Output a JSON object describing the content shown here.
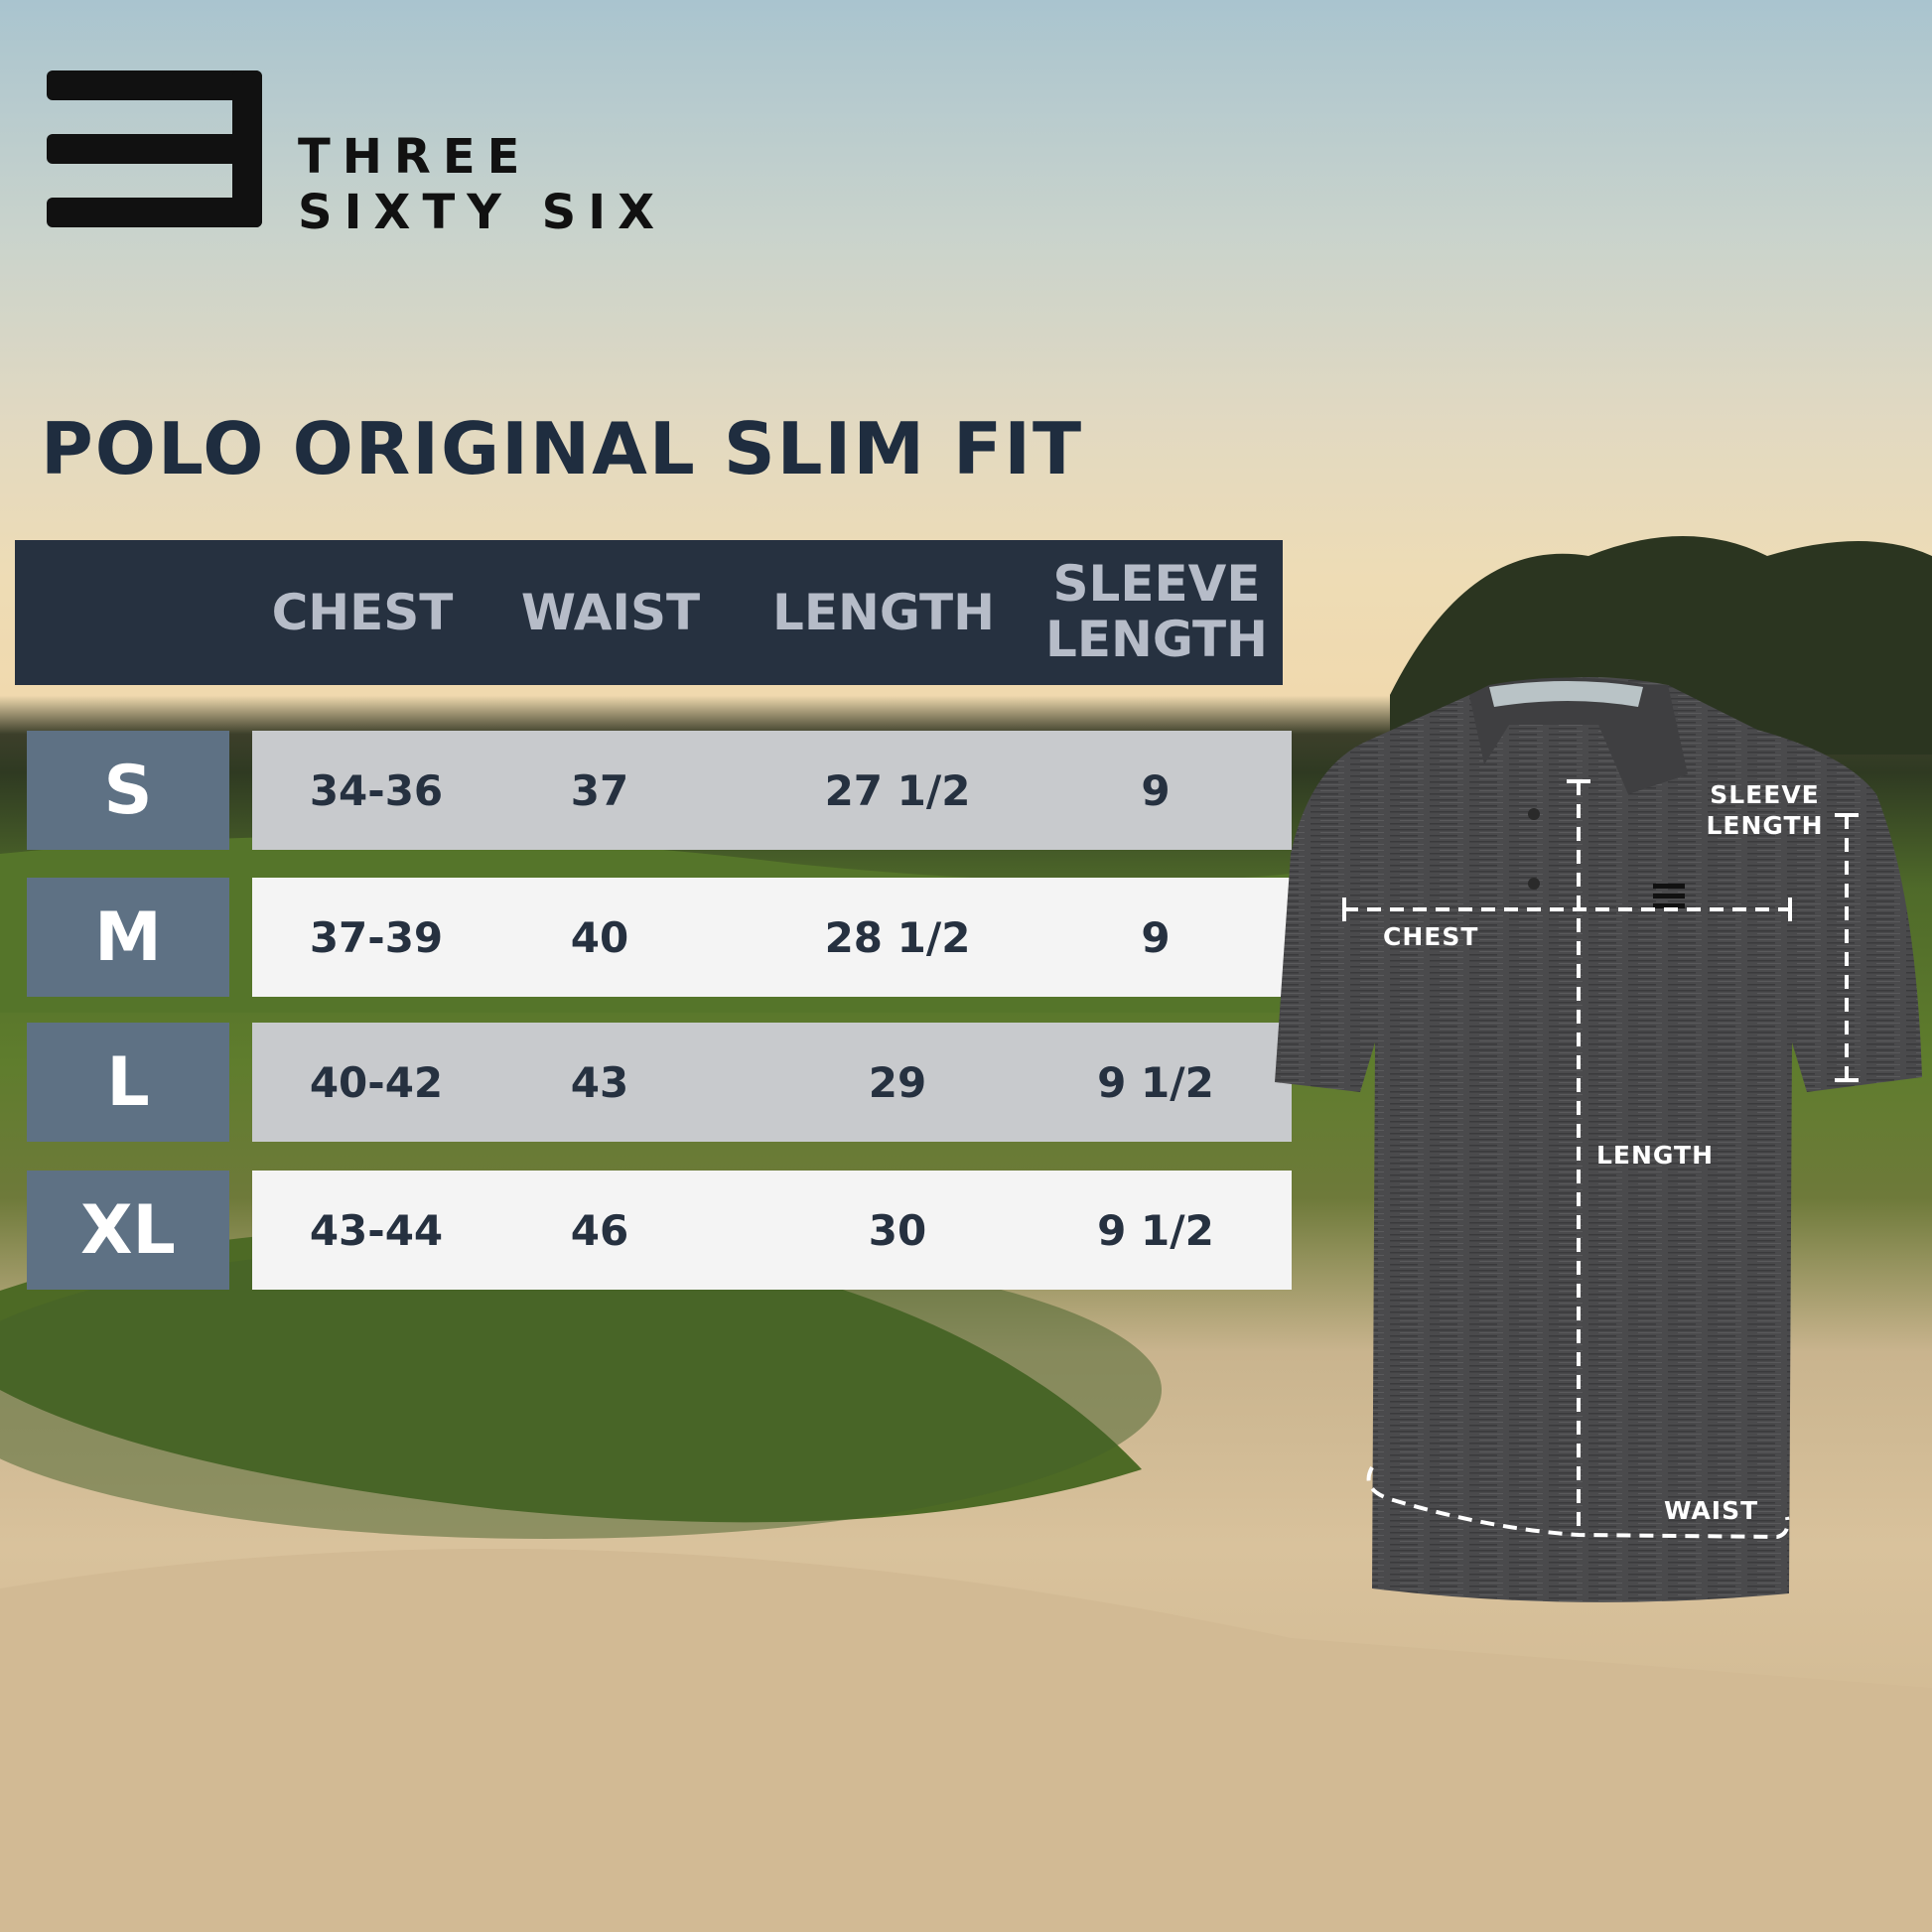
{
  "brand": {
    "line1": "THREE",
    "line2": "SIXTY SIX",
    "logo": "three-bars-logo"
  },
  "title": "POLO ORIGINAL SLIM FIT",
  "table": {
    "headers": [
      "CHEST",
      "WAIST",
      "LENGTH",
      "SLEEVE LENGTH"
    ],
    "header_sleeve_line1": "SLEEVE",
    "header_sleeve_line2": "LENGTH",
    "rows": [
      {
        "size": "S",
        "chest": "34-36",
        "waist": "37",
        "length": "27 1/2",
        "sleeve": "9"
      },
      {
        "size": "M",
        "chest": "37-39",
        "waist": "40",
        "length": "28 1/2",
        "sleeve": "9"
      },
      {
        "size": "L",
        "chest": "40-42",
        "waist": "43",
        "length": "29",
        "sleeve": "9 1/2"
      },
      {
        "size": "XL",
        "chest": "43-44",
        "waist": "46",
        "length": "30",
        "sleeve": "9 1/2"
      }
    ]
  },
  "diagram": {
    "chest": "CHEST",
    "length": "LENGTH",
    "sleeve_line1": "SLEEVE",
    "sleeve_line2": "LENGTH",
    "waist": "WAIST"
  },
  "colors": {
    "header_bg": "#263140",
    "size_bg": "#5e7184",
    "row_odd": "#c8cacd",
    "row_even": "#f4f4f4",
    "title": "#1f2d3f"
  }
}
